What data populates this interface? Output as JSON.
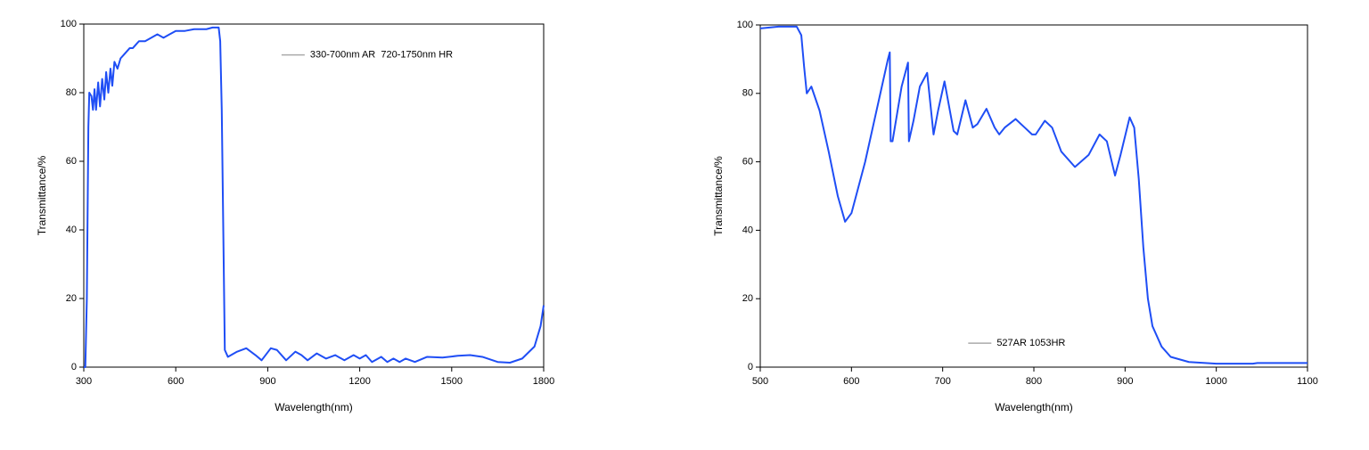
{
  "chart_data": [
    {
      "type": "line",
      "xlabel": "Wavelength(nm)",
      "ylabel": "Transmittance/%",
      "xlim": [
        300,
        1800
      ],
      "ylim": [
        0,
        100
      ],
      "xticks": [
        300,
        600,
        900,
        1200,
        1500,
        1800
      ],
      "yticks": [
        0,
        20,
        40,
        60,
        80,
        100
      ],
      "legend": "upper center",
      "series": [
        {
          "name": "330-700nm AR  720-1750nm HR",
          "color": "#1f4ef5",
          "x": [
            300,
            305,
            310,
            315,
            318,
            325,
            330,
            335,
            340,
            347,
            353,
            360,
            367,
            373,
            380,
            387,
            393,
            400,
            410,
            420,
            430,
            440,
            450,
            460,
            470,
            480,
            500,
            520,
            540,
            560,
            580,
            600,
            630,
            660,
            700,
            720,
            740,
            745,
            750,
            755,
            760,
            770,
            800,
            830,
            860,
            880,
            910,
            930,
            960,
            990,
            1010,
            1030,
            1060,
            1090,
            1120,
            1150,
            1180,
            1200,
            1220,
            1240,
            1270,
            1290,
            1310,
            1330,
            1350,
            1380,
            1420,
            1470,
            1520,
            1560,
            1600,
            1650,
            1690,
            1730,
            1770,
            1790,
            1800
          ],
          "values": [
            0,
            0,
            20,
            70,
            80,
            79,
            75,
            81,
            75,
            83,
            76,
            84,
            78,
            86,
            80,
            87,
            82,
            89,
            87,
            90,
            91,
            92,
            93,
            93,
            94,
            95,
            95,
            96,
            97,
            96,
            97,
            98,
            98,
            98.5,
            98.5,
            99,
            99,
            95,
            75,
            40,
            5,
            3,
            4.5,
            5.5,
            3.5,
            2,
            5.5,
            5,
            2,
            4.5,
            3.5,
            2,
            4,
            2.5,
            3.5,
            2,
            3.5,
            2.5,
            3.5,
            1.5,
            3,
            1.5,
            2.5,
            1.5,
            2.5,
            1.5,
            3,
            2.8,
            3.3,
            3.5,
            3,
            1.5,
            1.3,
            2.5,
            6,
            12,
            18
          ]
        }
      ]
    },
    {
      "type": "line",
      "xlabel": "Wavelength(nm)",
      "ylabel": "Transmittance/%",
      "xlim": [
        500,
        1100
      ],
      "ylim": [
        0,
        100
      ],
      "xticks": [
        500,
        600,
        700,
        800,
        900,
        1000,
        1100
      ],
      "yticks": [
        0,
        20,
        40,
        60,
        80,
        100
      ],
      "legend": "lower center",
      "series": [
        {
          "name": "527AR 1053HR",
          "color": "#1f4ef5",
          "x": [
            500,
            520,
            540,
            545,
            548,
            551,
            556,
            565,
            575,
            585,
            593,
            600,
            615,
            630,
            640,
            642,
            643,
            645,
            655,
            662,
            663,
            668,
            675,
            683,
            690,
            695,
            702,
            712,
            716,
            725,
            733,
            738,
            748,
            757,
            762,
            768,
            780,
            790,
            798,
            802,
            812,
            820,
            830,
            845,
            860,
            872,
            880,
            889,
            895,
            905,
            910,
            915,
            920,
            925,
            930,
            940,
            950,
            970,
            1000,
            1040,
            1045,
            1100
          ],
          "values": [
            99,
            99.5,
            99.5,
            97,
            88,
            80,
            82,
            75,
            63,
            50,
            42.5,
            45,
            60,
            78,
            90,
            92,
            66,
            66,
            82,
            89,
            66,
            72,
            82,
            86,
            68,
            75,
            83.5,
            69,
            68,
            78,
            70,
            71,
            75.5,
            70,
            68,
            70,
            72.5,
            70,
            68,
            68,
            72,
            70,
            63,
            58.5,
            62,
            68,
            66,
            56,
            62,
            73,
            70,
            55,
            35,
            20,
            12,
            6,
            3,
            1.5,
            1,
            1,
            1.2,
            1.2
          ]
        }
      ]
    }
  ]
}
